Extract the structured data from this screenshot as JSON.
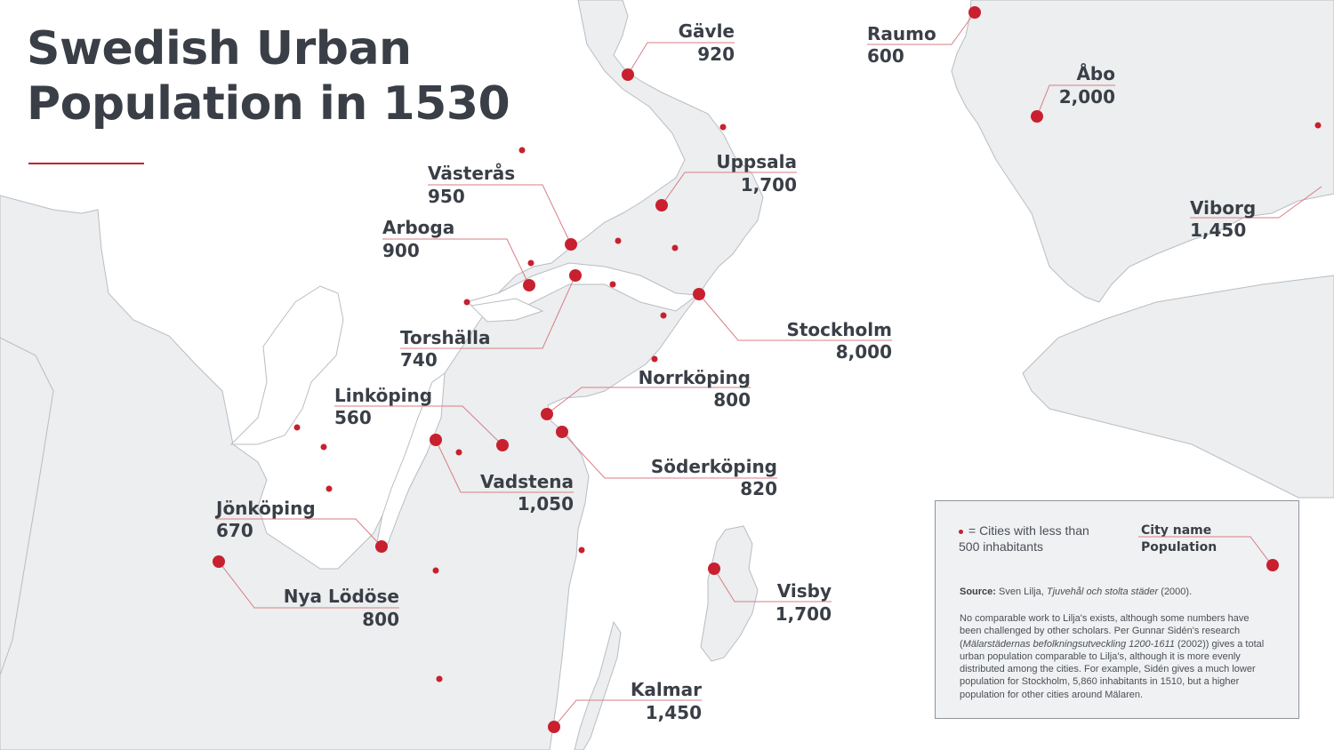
{
  "title_line1": "Swedish Urban",
  "title_line2": "Population in 1530",
  "colors": {
    "accent": "#c8202f",
    "land": "#eceeef",
    "text": "#3a3f47"
  },
  "cities": [
    {
      "name": "Gävle",
      "population": "920"
    },
    {
      "name": "Raumo",
      "population": "600"
    },
    {
      "name": "Åbo",
      "population": "2,000"
    },
    {
      "name": "Uppsala",
      "population": "1,700"
    },
    {
      "name": "Västerås",
      "population": "950"
    },
    {
      "name": "Viborg",
      "population": "1,450"
    },
    {
      "name": "Arboga",
      "population": "900"
    },
    {
      "name": "Stockholm",
      "population": "8,000"
    },
    {
      "name": "Torshälla",
      "population": "740"
    },
    {
      "name": "Norrköping",
      "population": "800"
    },
    {
      "name": "Linköping",
      "population": "560"
    },
    {
      "name": "Söderköping",
      "population": "820"
    },
    {
      "name": "Vadstena",
      "population": "1,050"
    },
    {
      "name": "Jönköping",
      "population": "670"
    },
    {
      "name": "Nya Lödöse",
      "population": "800"
    },
    {
      "name": "Visby",
      "population": "1,700"
    },
    {
      "name": "Kalmar",
      "population": "1,450"
    }
  ],
  "legend": {
    "small_cities": "= Cities with less than 500 inhabitants",
    "key_name": "City name",
    "key_population": "Population",
    "source_label": "Source:",
    "source_author": "Sven Lilja,",
    "source_title": "Tjuvehål och stolta städer",
    "source_year": "(2000).",
    "note_part1": "No comparable work to Lilja's exists, although some numbers have been challenged by other scholars. Per Gunnar Sidén's research (",
    "note_title": "Mälarstädernas befolkningsutveckling 1200-1611",
    "note_part2": " (2002)) gives a total urban population comparable to Lilja's, although it is more evenly distributed among the cities. For example, Sidén gives a much lower population for Stockholm, 5,860 inhabitants in 1510, but a higher population for other cities around Mälaren."
  }
}
